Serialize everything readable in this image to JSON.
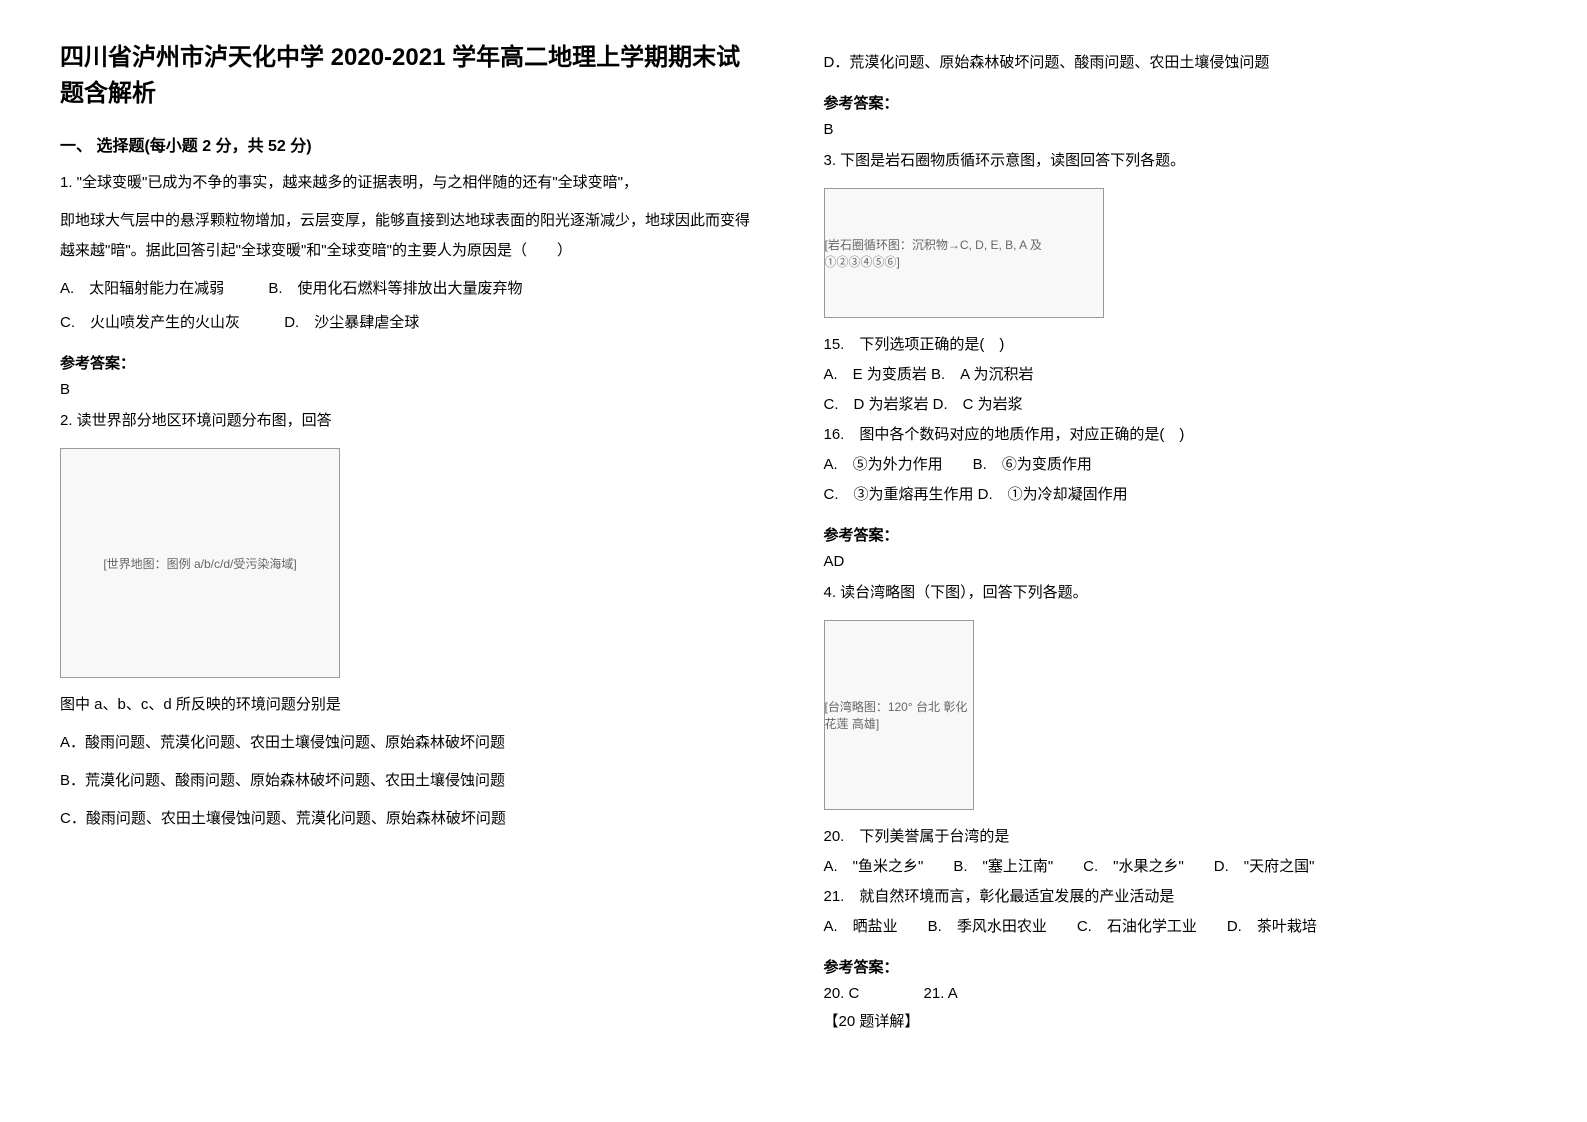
{
  "title": "四川省泸州市泸天化中学 2020-2021 学年高二地理上学期期末试题含解析",
  "section1_header": "一、 选择题(每小题 2 分，共 52 分)",
  "q1": {
    "text_line1": "1. \"全球变暖\"已成为不争的事实，越来越多的证据表明，与之相伴随的还有\"全球变暗\"，",
    "text_line2": "即地球大气层中的悬浮颗粒物增加，云层变厚，能够直接到达地球表面的阳光逐渐减少，地球因此而变得越来越\"暗\"。据此回答引起\"全球变暖\"和\"全球变暗\"的主要人为原因是（　　）",
    "opt_a": "A.　太阳辐射能力在减弱",
    "opt_b": "B.　使用化石燃料等排放出大量废弃物",
    "opt_c": "C.　火山喷发产生的火山灰",
    "opt_d": "D.　沙尘暴肆虐全球",
    "answer_label": "参考答案：",
    "answer": "B"
  },
  "q2": {
    "text": "2. 读世界部分地区环境问题分布图，回答",
    "figure_caption": "[世界地图：图例 a/b/c/d/受污染海域]",
    "sub_text": "图中 a、b、c、d 所反映的环境问题分别是",
    "opt_a": "A．酸雨问题、荒漠化问题、农田土壤侵蚀问题、原始森林破坏问题",
    "opt_b": "B．荒漠化问题、酸雨问题、原始森林破坏问题、农田土壤侵蚀问题",
    "opt_c": "C．酸雨问题、农田土壤侵蚀问题、荒漠化问题、原始森林破坏问题",
    "opt_d": "D．荒漠化问题、原始森林破坏问题、酸雨问题、农田土壤侵蚀问题",
    "answer_label": "参考答案：",
    "answer": "B"
  },
  "q3": {
    "text": "3. 下图是岩石圈物质循环示意图，读图回答下列各题。",
    "figure_caption": "[岩石圈循环图：沉积物→C, D, E, B, A 及①②③④⑤⑥]",
    "q15_text": "15.　下列选项正确的是(　)",
    "q15_a": "A.　E 为变质岩 B.　A 为沉积岩",
    "q15_c": "C.　D 为岩浆岩 D.　C 为岩浆",
    "q16_text": "16.　图中各个数码对应的地质作用，对应正确的是(　)",
    "q16_a": "A.　⑤为外力作用　　B.　⑥为变质作用",
    "q16_c": "C.　③为重熔再生作用 D.　①为冷却凝固作用",
    "answer_label": "参考答案：",
    "answer": "AD"
  },
  "q4": {
    "text": "4. 读台湾略图（下图），回答下列各题。",
    "figure_caption": "[台湾略图：120° 台北 彰化 花莲 高雄]",
    "q20_text": "20.　下列美誉属于台湾的是",
    "q20_opts": "A.　\"鱼米之乡\"　　B.　\"塞上江南\"　　C.　\"水果之乡\"　　D.　\"天府之国\"",
    "q21_text": "21.　就自然环境而言，彰化最适宜发展的产业活动是",
    "q21_opts": "A.　晒盐业　　B.　季风水田农业　　C.　石油化学工业　　D.　茶叶栽培",
    "answer_label": "参考答案：",
    "answer_20": "20. C",
    "answer_21": "21. A",
    "explain": "【20 题详解】"
  }
}
